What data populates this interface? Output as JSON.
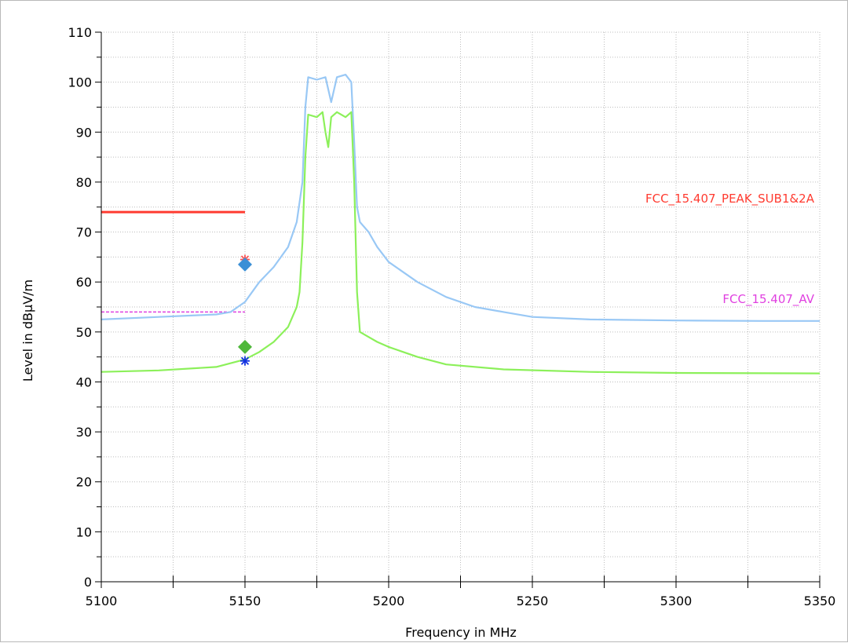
{
  "chart_data": {
    "type": "line",
    "title": "",
    "xlabel": "Frequency in MHz",
    "ylabel": "Level in dBµV/m",
    "xlim": [
      5100,
      5350
    ],
    "ylim": [
      0,
      110
    ],
    "x_ticks": [
      5100,
      5150,
      5200,
      5250,
      5300,
      5350
    ],
    "x_minor_step": 25,
    "y_ticks": [
      0,
      10,
      20,
      30,
      40,
      50,
      60,
      70,
      80,
      90,
      100,
      110
    ],
    "y_minor_step": 5,
    "grid": true,
    "limit_lines": [
      {
        "name": "FCC_15.407_PEAK_SUB1&2A",
        "value": 74,
        "x_range": [
          5100,
          5150
        ],
        "color": "#ff3b30",
        "style": "solid"
      },
      {
        "name": "FCC_15.407_AV",
        "value": 54,
        "x_range": [
          5100,
          5150
        ],
        "color": "#e040e0",
        "style": "dashed"
      }
    ],
    "series": [
      {
        "color": "#99c8f5",
        "x": [
          5100,
          5120,
          5140,
          5145,
          5150,
          5155,
          5160,
          5165,
          5168,
          5170,
          5171,
          5172,
          5175,
          5178,
          5180,
          5182,
          5185,
          5187,
          5188,
          5189,
          5190,
          5193,
          5196,
          5200,
          5210,
          5220,
          5230,
          5240,
          5250,
          5270,
          5300,
          5330,
          5350
        ],
        "values": [
          52.5,
          53,
          53.5,
          54,
          56,
          60,
          63,
          67,
          72,
          80,
          95,
          101,
          100.5,
          101,
          96,
          101,
          101.5,
          100,
          88,
          75,
          72,
          70,
          67,
          64,
          60,
          57,
          55,
          54,
          53,
          52.5,
          52.3,
          52.2,
          52.2
        ]
      },
      {
        "color": "#8cf05a",
        "x": [
          5100,
          5120,
          5140,
          5150,
          5155,
          5160,
          5165,
          5168,
          5169,
          5170,
          5171,
          5172,
          5175,
          5177,
          5178,
          5179,
          5180,
          5182,
          5185,
          5187,
          5188,
          5189,
          5190,
          5193,
          5196,
          5200,
          5210,
          5220,
          5240,
          5270,
          5300,
          5350
        ],
        "values": [
          42,
          42.3,
          43,
          44.5,
          46,
          48,
          51,
          55,
          58,
          68,
          85,
          93.5,
          93,
          94,
          90,
          87,
          93,
          94,
          93,
          94,
          80,
          58,
          50,
          49,
          48,
          47,
          45,
          43.5,
          42.5,
          42,
          41.8,
          41.7
        ]
      }
    ],
    "markers": [
      {
        "x": 5150,
        "y": 64.5,
        "shape": "star",
        "color": "#ff5050"
      },
      {
        "x": 5150,
        "y": 63.5,
        "shape": "diamond",
        "color": "#3b8fd6"
      },
      {
        "x": 5150,
        "y": 47,
        "shape": "diamond",
        "color": "#4fb83a"
      },
      {
        "x": 5150,
        "y": 44.2,
        "shape": "star",
        "color": "#1030e0"
      }
    ]
  }
}
